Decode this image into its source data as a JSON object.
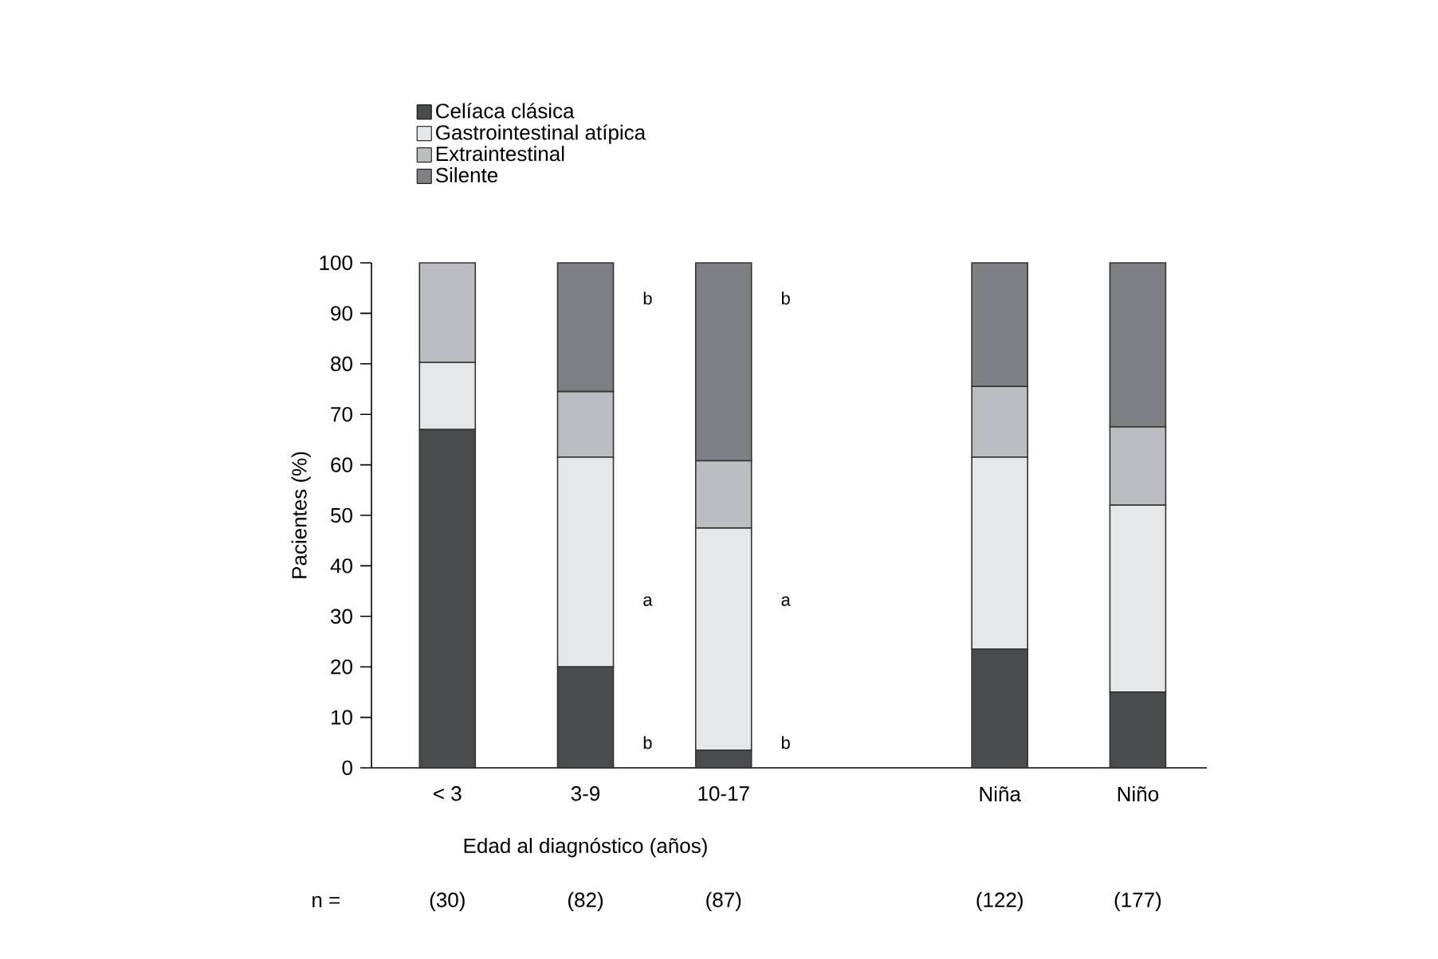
{
  "chart_data": {
    "type": "bar",
    "stacked": true,
    "xlabel": "Edad al diagnóstico (años)",
    "ylabel": "Pacientes (%)",
    "categories": [
      "< 3",
      "3-9",
      "10-17",
      null,
      "Niña",
      "Niño"
    ],
    "series": [
      {
        "name": "Celíaca clásica",
        "color": "#4a4b4d",
        "values": [
          67,
          20,
          3.5,
          null,
          23.5,
          15
        ]
      },
      {
        "name": "Gastrointestinal atípica",
        "color": "#e6e7e8",
        "values": [
          13.3,
          41.5,
          44,
          null,
          38,
          37
        ]
      },
      {
        "name": "Extraintestinal",
        "color": "#bcbdc0",
        "values": [
          19.7,
          13,
          13.3,
          null,
          14,
          15.5
        ]
      },
      {
        "name": "Silente",
        "color": "#7f8083",
        "values": [
          0,
          25.5,
          39.2,
          null,
          24.5,
          32.5
        ]
      }
    ],
    "ylim": [
      0,
      100
    ],
    "yticks": [
      0,
      10,
      20,
      30,
      40,
      50,
      60,
      70,
      80,
      90,
      100
    ],
    "legend": "top left",
    "annotations": [
      "b",
      "a",
      "b",
      "b",
      "a",
      "b",
      "n =",
      "(30)",
      "(82)",
      "(87)",
      "(122)",
      "(177)"
    ]
  }
}
